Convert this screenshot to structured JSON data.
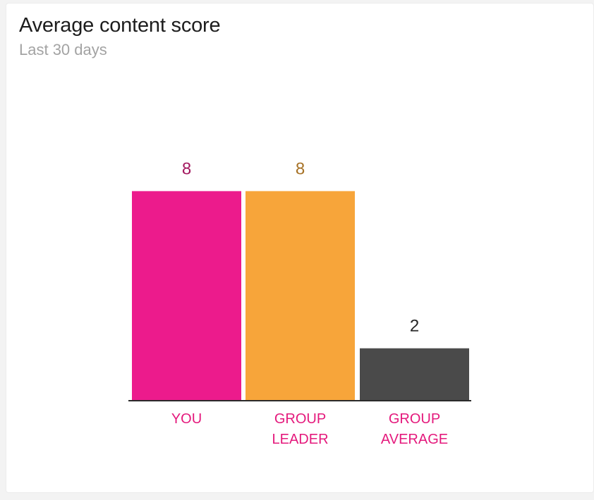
{
  "header": {
    "title": "Average content score",
    "subtitle": "Last 30 days"
  },
  "colors": {
    "category_label": "#e4197c"
  },
  "chart_data": {
    "type": "bar",
    "title": "Average content score",
    "subtitle": "Last 30 days",
    "categories": [
      [
        "YOU"
      ],
      [
        "GROUP",
        "LEADER"
      ],
      [
        "GROUP",
        "AVERAGE"
      ]
    ],
    "values": [
      8,
      8,
      2
    ],
    "bar_colors": [
      "#ec1b8c",
      "#f7a53a",
      "#4a4a4a"
    ],
    "value_label_colors": [
      "#a3185f",
      "#a77226",
      "#262626"
    ],
    "xlabel": "",
    "ylabel": "",
    "ylim": [
      0,
      10
    ],
    "grid": false,
    "legend": "none"
  }
}
